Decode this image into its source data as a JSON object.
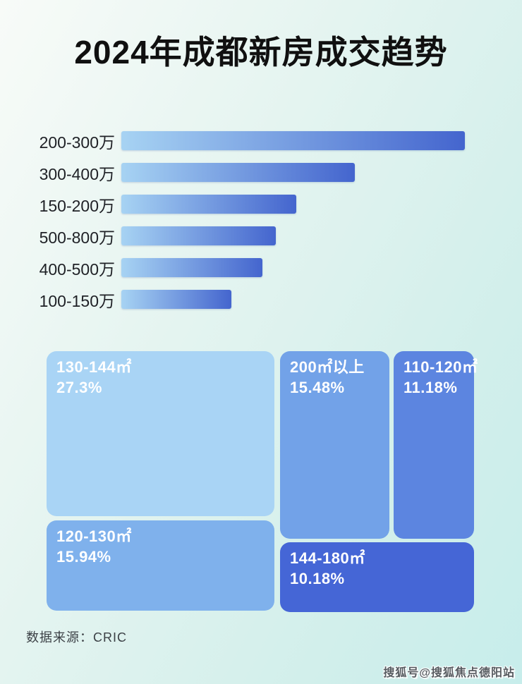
{
  "page": {
    "title": "2024年成都新房成交趋势",
    "source_note": "数据来源：CRIC",
    "watermark": "搜狐号@搜狐焦点德阳站"
  },
  "colors": {
    "background_top_left": "#f8fbf8",
    "background_upper_mid": "#e4f4f0",
    "background_lower_mid": "#d2efeb",
    "background_bottom_right": "#c7edeb",
    "title_text": "#101010",
    "bar_label_text": "#1f2126",
    "bar_gradient_start": "#a7d3f3",
    "bar_gradient_end": "#4465ce",
    "treemap_text": "#ffffff",
    "source_text": "#3c4146",
    "watermark_text": "#565b60"
  },
  "chart_data": [
    {
      "type": "bar",
      "orientation": "horizontal",
      "title": "2024年成都新房成交趋势",
      "categories": [
        "200-300万",
        "300-400万",
        "150-200万",
        "500-800万",
        "400-500万",
        "100-150万"
      ],
      "values": [
        100,
        68,
        51,
        45,
        41,
        32
      ],
      "value_note": "no numeric labels shown in image; values are bar lengths as percent of longest bar",
      "xlabel": "",
      "ylabel": "",
      "grid": false,
      "legend": false,
      "bar_color_gradient": [
        "#a7d3f3",
        "#4465ce"
      ]
    },
    {
      "type": "treemap",
      "title": "",
      "items": [
        {
          "label": "130-144㎡",
          "pct_label": "27.3%",
          "value": 27.3,
          "color": "#a9d4f5"
        },
        {
          "label": "120-130㎡",
          "pct_label": "15.94%",
          "value": 15.94,
          "color": "#7fb1ec"
        },
        {
          "label": "200㎡以上",
          "pct_label": "15.48%",
          "value": 15.48,
          "color": "#72a2e8"
        },
        {
          "label": "110-120㎡",
          "pct_label": "11.18%",
          "value": 11.18,
          "color": "#5c85e0"
        },
        {
          "label": "144-180㎡",
          "pct_label": "10.18%",
          "value": 10.18,
          "color": "#4566d6"
        }
      ]
    }
  ]
}
